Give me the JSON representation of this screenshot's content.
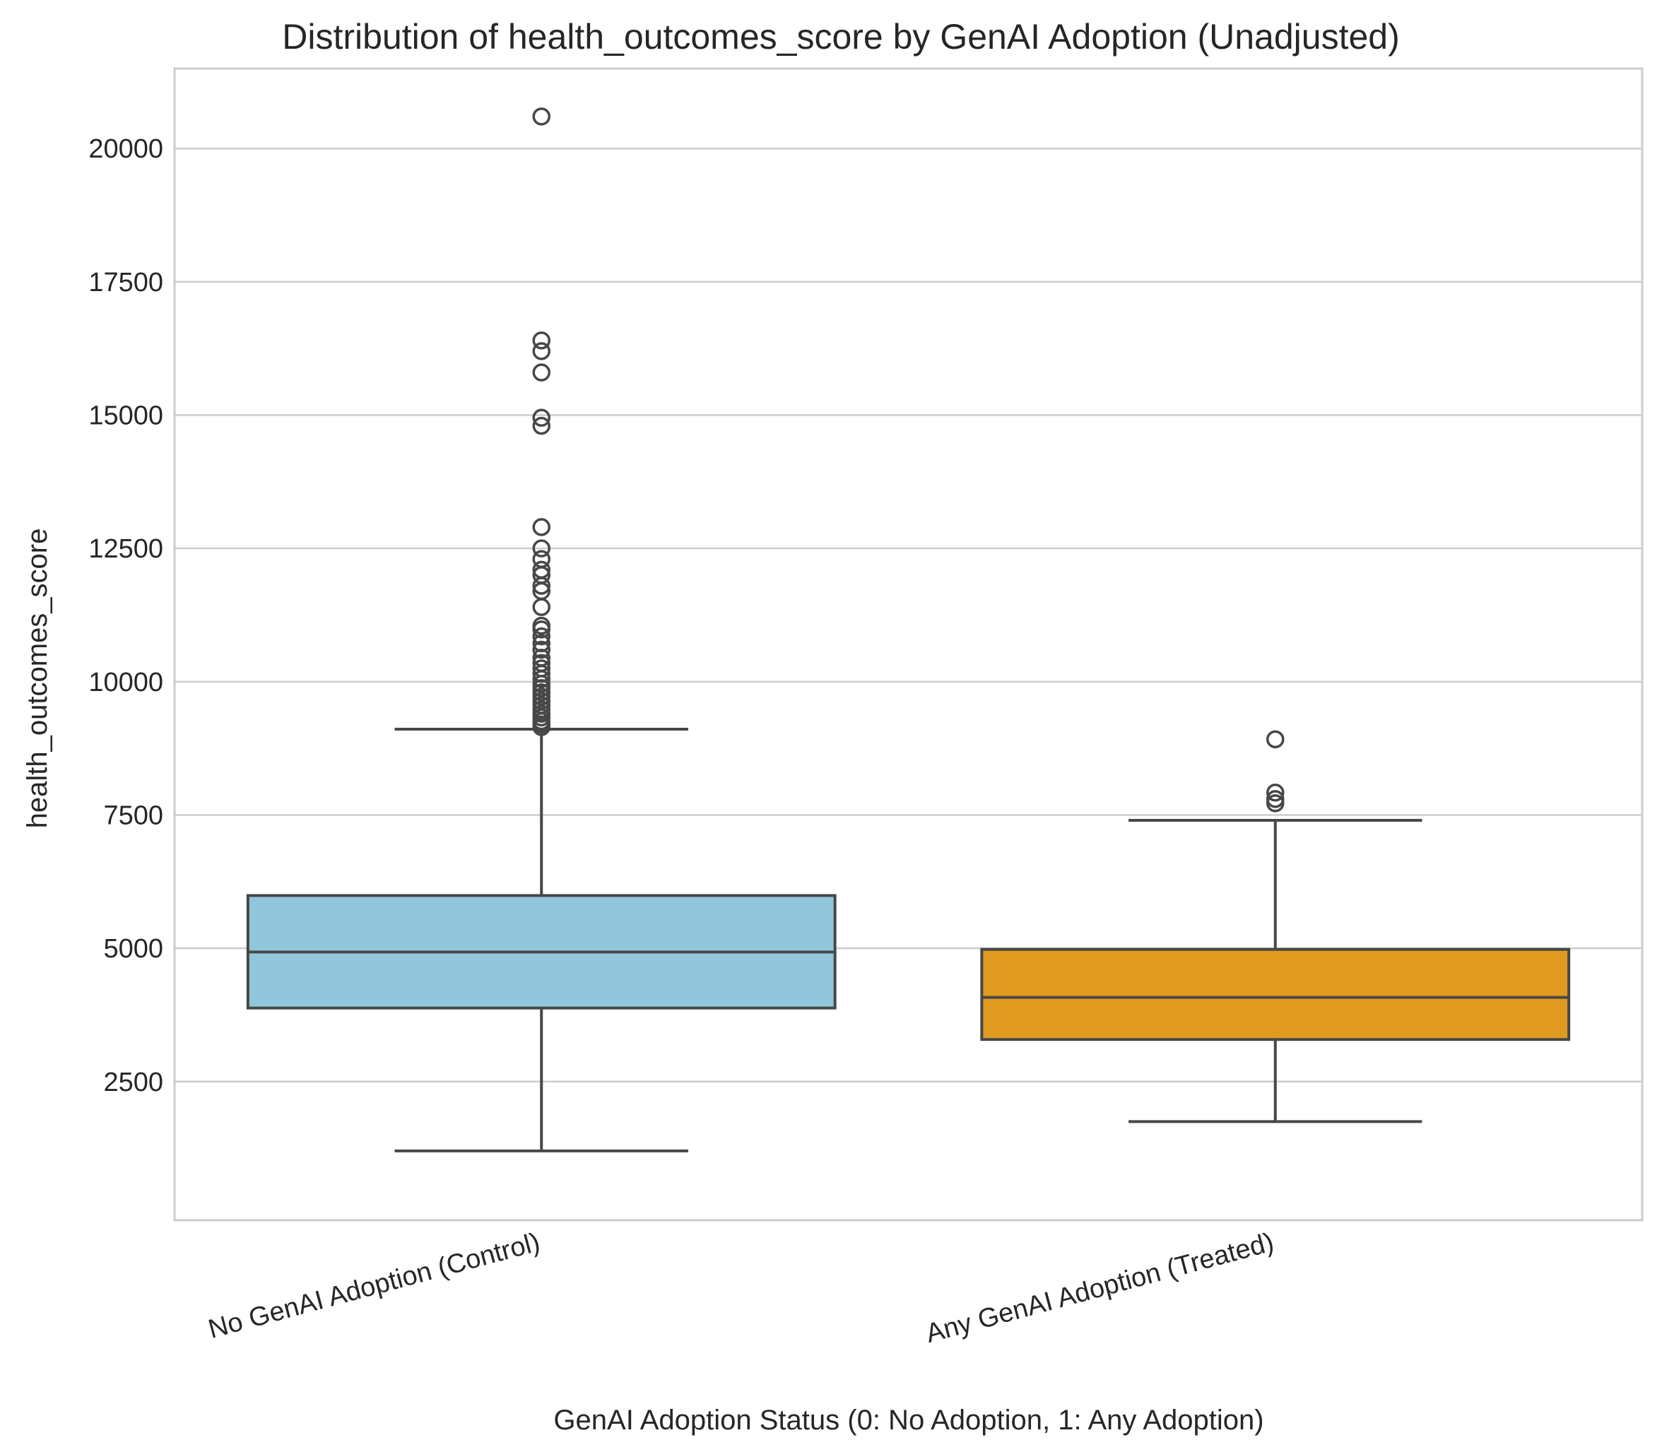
{
  "chart_data": {
    "type": "box",
    "title": "Distribution of health_outcomes_score by GenAI Adoption (Unadjusted)",
    "xlabel": "GenAI Adoption Status (0: No Adoption, 1: Any Adoption)",
    "ylabel": "health_outcomes_score",
    "ylim": [
      -100,
      21500
    ],
    "yticks": [
      2500,
      5000,
      7500,
      10000,
      12500,
      15000,
      17500,
      20000
    ],
    "grid": true,
    "categories": [
      "No GenAI Adoption (Control)",
      "Any GenAI Adoption (Treated)"
    ],
    "boxes": [
      {
        "name": "No GenAI Adoption (Control)",
        "color": "#92c6dd",
        "whisker_low": 1200,
        "q1": 3880,
        "median": 4930,
        "q3": 5990,
        "whisker_high": 9110,
        "outliers": [
          9150,
          9200,
          9260,
          9330,
          9400,
          9480,
          9560,
          9640,
          9720,
          9800,
          9880,
          9960,
          10050,
          10150,
          10250,
          10350,
          10450,
          10600,
          10720,
          10850,
          10980,
          11050,
          11400,
          11700,
          11800,
          12000,
          12100,
          12300,
          12500,
          12900,
          14800,
          14950,
          15800,
          16200,
          16400,
          20600
        ]
      },
      {
        "name": "Any GenAI Adoption (Treated)",
        "color": "#e09a20",
        "whisker_low": 1750,
        "q1": 3290,
        "median": 4080,
        "q3": 4980,
        "whisker_high": 7400,
        "outliers": [
          7720,
          7800,
          7920,
          8920
        ]
      }
    ]
  }
}
